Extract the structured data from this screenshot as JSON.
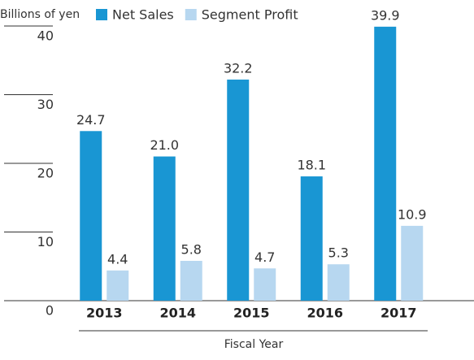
{
  "chart_data": {
    "type": "bar",
    "y_axis_label": "Billions of yen",
    "x_axis_label": "Fiscal Year",
    "categories": [
      "2013",
      "2014",
      "2015",
      "2016",
      "2017"
    ],
    "series": [
      {
        "name": "Net Sales",
        "color": "#1996d3",
        "values": [
          24.7,
          21.0,
          32.2,
          18.1,
          39.9
        ],
        "value_labels": [
          "24.7",
          "21.0",
          "32.2",
          "18.1",
          "39.9"
        ]
      },
      {
        "name": "Segment Profit",
        "color": "#b7d7f0",
        "values": [
          4.4,
          5.8,
          4.7,
          5.3,
          10.9
        ],
        "value_labels": [
          "4.4",
          "5.8",
          "4.7",
          "5.3",
          "10.9"
        ]
      }
    ],
    "ylim": [
      0,
      40
    ],
    "yticks": [
      0,
      10,
      20,
      30,
      40
    ],
    "grid": false
  }
}
